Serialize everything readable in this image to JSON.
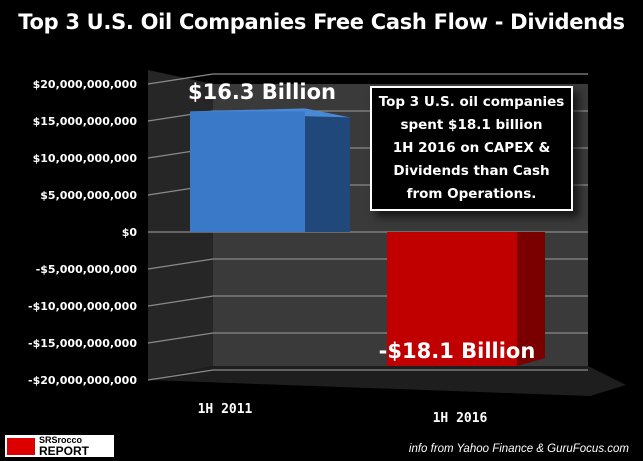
{
  "chart_data": {
    "type": "bar",
    "title": "Top 3 U.S. Oil Companies Free Cash Flow - Dividends",
    "categories": [
      "1H 2011",
      "1H 2016"
    ],
    "values": [
      16300000000,
      -18100000000
    ],
    "data_labels": [
      "$16.3 Billion",
      "-$18.1 Billion"
    ],
    "colors": [
      "#3a78c8",
      "#c00000"
    ],
    "ylim": [
      -20000000000,
      20000000000
    ],
    "yticks": [
      "$20,000,000,000",
      "$15,000,000,000",
      "$10,000,000,000",
      "$5,000,000,000",
      "$0",
      "-$5,000,000,000",
      "-$10,000,000,000",
      "-$15,000,000,000",
      "-$20,000,000,000"
    ],
    "ytick_values": [
      20000000000,
      15000000000,
      10000000000,
      5000000000,
      0,
      -5000000000,
      -10000000000,
      -15000000000,
      -20000000000
    ],
    "grid": true,
    "style": "3d",
    "annotation": "Top 3 U.S. oil companies spent $18.1 billion 1H 2016 on CAPEX & Dividends than Cash from Operations."
  },
  "note_lines": [
    "Top 3 U.S. oil companies",
    "spent $18.1 billion",
    "1H 2016 on CAPEX &",
    "Dividends than Cash",
    "from Operations."
  ],
  "source": "info from Yahoo Finance & GuruFocus.com",
  "logo": {
    "line1": "SRSrocco",
    "line2": "REPORT"
  }
}
